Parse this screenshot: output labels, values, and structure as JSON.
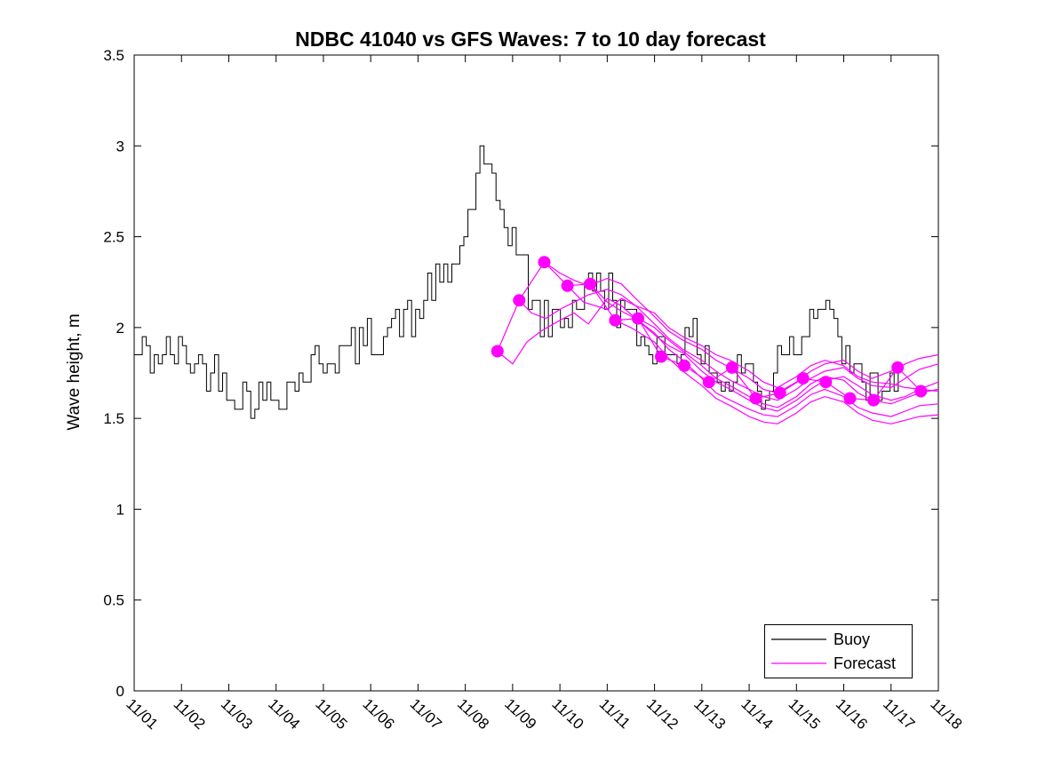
{
  "figure": {
    "title": "NDBC 41040 vs GFS Waves: 7 to 10 day forecast",
    "ylabel": "Wave height, m"
  },
  "colors": {
    "buoy": "#000000",
    "forecast": "#FF00FF",
    "axis": "#000000",
    "background": "#FFFFFF"
  },
  "legend": {
    "position": "lower-right",
    "items": [
      {
        "label": "Buoy",
        "series": "buoy"
      },
      {
        "label": "Forecast",
        "series": "forecast"
      }
    ]
  },
  "chart_data": {
    "type": "line",
    "title": "NDBC 41040 vs GFS Waves: 7 to 10 day forecast",
    "xlabel": "",
    "ylabel": "Wave height, m",
    "x_tick_labels": [
      "11/01",
      "11/02",
      "11/03",
      "11/04",
      "11/05",
      "11/06",
      "11/07",
      "11/08",
      "11/09",
      "11/10",
      "11/11",
      "11/12",
      "11/13",
      "11/14",
      "11/15",
      "11/16",
      "11/17",
      "11/18"
    ],
    "x_unit": "days from 11/01",
    "xlim": [
      0,
      17
    ],
    "ylim": [
      0,
      3.5
    ],
    "y_ticks": [
      0,
      0.5,
      1,
      1.5,
      2,
      2.5,
      3,
      3.5
    ],
    "y_tick_labels": [
      "0",
      "0.5",
      "1",
      "1.5",
      "2",
      "2.5",
      "3",
      "3.5"
    ],
    "grid": false,
    "x_tick_angle_deg": 43,
    "series": [
      {
        "name": "Buoy",
        "style": "stairs",
        "color_key": "buoy",
        "x_start": 0,
        "x_end": 16.2,
        "step_days": 0.085,
        "noise_amplitude": 0.12,
        "quantize": 0.05,
        "seed": 42,
        "trend": [
          [
            0,
            1.85
          ],
          [
            0.4,
            1.83
          ],
          [
            0.8,
            1.86
          ],
          [
            1.2,
            1.82
          ],
          [
            1.6,
            1.78
          ],
          [
            2.0,
            1.68
          ],
          [
            2.4,
            1.62
          ],
          [
            2.8,
            1.61
          ],
          [
            3.2,
            1.66
          ],
          [
            3.6,
            1.76
          ],
          [
            4.0,
            1.82
          ],
          [
            4.4,
            1.86
          ],
          [
            4.8,
            1.9
          ],
          [
            5.2,
            1.98
          ],
          [
            5.6,
            2.04
          ],
          [
            5.9,
            2.02
          ],
          [
            6.1,
            2.15
          ],
          [
            6.3,
            2.26
          ],
          [
            6.5,
            2.2
          ],
          [
            6.7,
            2.32
          ],
          [
            6.9,
            2.45
          ],
          [
            7.1,
            2.65
          ],
          [
            7.3,
            2.95
          ],
          [
            7.45,
            2.82
          ],
          [
            7.6,
            2.72
          ],
          [
            7.8,
            2.62
          ],
          [
            8.0,
            2.5
          ],
          [
            8.2,
            2.32
          ],
          [
            8.5,
            2.08
          ],
          [
            8.8,
            2.02
          ],
          [
            9.1,
            2.07
          ],
          [
            9.4,
            2.18
          ],
          [
            9.7,
            2.24
          ],
          [
            10.0,
            2.2
          ],
          [
            10.3,
            2.1
          ],
          [
            10.6,
            1.96
          ],
          [
            10.9,
            1.9
          ],
          [
            11.2,
            1.9
          ],
          [
            11.5,
            1.89
          ],
          [
            11.8,
            1.92
          ],
          [
            12.0,
            1.9
          ],
          [
            12.3,
            1.74
          ],
          [
            12.5,
            1.63
          ],
          [
            12.7,
            1.76
          ],
          [
            12.9,
            1.84
          ],
          [
            13.1,
            1.68
          ],
          [
            13.3,
            1.6
          ],
          [
            13.5,
            1.76
          ],
          [
            13.7,
            1.95
          ],
          [
            13.9,
            1.88
          ],
          [
            14.1,
            2.0
          ],
          [
            14.35,
            2.1
          ],
          [
            14.55,
            2.15
          ],
          [
            14.7,
            2.02
          ],
          [
            14.9,
            1.93
          ],
          [
            15.1,
            1.76
          ],
          [
            15.35,
            1.7
          ],
          [
            15.6,
            1.71
          ],
          [
            15.8,
            1.66
          ],
          [
            16.0,
            1.62
          ],
          [
            16.2,
            1.76
          ]
        ]
      },
      {
        "name": "Forecast",
        "style": "lines",
        "color_key": "forecast",
        "lines": [
          [
            [
              7.68,
              1.87
            ],
            [
              8.0,
              1.8
            ],
            [
              8.3,
              1.92
            ],
            [
              8.6,
              1.98
            ],
            [
              9.0,
              2.04
            ],
            [
              9.3,
              2.08
            ],
            [
              9.6,
              2.02
            ],
            [
              10.0,
              2.16
            ],
            [
              10.3,
              2.12
            ],
            [
              10.6,
              2.05
            ],
            [
              11.0,
              1.96
            ],
            [
              11.3,
              1.9
            ],
            [
              11.6,
              1.86
            ],
            [
              12.0,
              1.76
            ],
            [
              12.3,
              1.7
            ],
            [
              12.6,
              1.66
            ],
            [
              13.0,
              1.6
            ],
            [
              13.3,
              1.56
            ],
            [
              13.6,
              1.54
            ],
            [
              14.0,
              1.6
            ],
            [
              14.3,
              1.66
            ],
            [
              14.6,
              1.71
            ],
            [
              15.0,
              1.73
            ],
            [
              15.3,
              1.68
            ],
            [
              15.6,
              1.63
            ],
            [
              16.0,
              1.6
            ],
            [
              16.3,
              1.62
            ],
            [
              16.6,
              1.66
            ],
            [
              17.0,
              1.7
            ]
          ],
          [
            [
              8.14,
              2.15
            ],
            [
              8.4,
              2.08
            ],
            [
              8.7,
              2.05
            ],
            [
              9.0,
              2.1
            ],
            [
              9.3,
              2.14
            ],
            [
              9.6,
              2.18
            ],
            [
              10.0,
              2.21
            ],
            [
              10.3,
              2.18
            ],
            [
              10.6,
              2.12
            ],
            [
              11.0,
              2.02
            ],
            [
              11.3,
              1.94
            ],
            [
              11.6,
              1.88
            ],
            [
              12.0,
              1.82
            ],
            [
              12.3,
              1.76
            ],
            [
              12.6,
              1.71
            ],
            [
              13.0,
              1.66
            ],
            [
              13.3,
              1.62
            ],
            [
              13.6,
              1.6
            ],
            [
              14.0,
              1.66
            ],
            [
              14.3,
              1.72
            ],
            [
              14.6,
              1.76
            ],
            [
              15.0,
              1.78
            ],
            [
              15.3,
              1.72
            ],
            [
              15.6,
              1.68
            ],
            [
              16.0,
              1.67
            ],
            [
              16.3,
              1.72
            ],
            [
              16.6,
              1.77
            ],
            [
              17.0,
              1.8
            ]
          ],
          [
            [
              8.67,
              2.36
            ],
            [
              9.0,
              2.3
            ],
            [
              9.3,
              2.26
            ],
            [
              9.6,
              2.23
            ],
            [
              10.0,
              2.27
            ],
            [
              10.3,
              2.24
            ],
            [
              10.6,
              2.16
            ],
            [
              11.0,
              2.06
            ],
            [
              11.3,
              1.98
            ],
            [
              11.6,
              1.93
            ],
            [
              12.0,
              1.88
            ],
            [
              12.3,
              1.82
            ],
            [
              12.6,
              1.78
            ],
            [
              13.0,
              1.72
            ],
            [
              13.3,
              1.66
            ],
            [
              13.6,
              1.64
            ],
            [
              14.0,
              1.7
            ],
            [
              14.3,
              1.76
            ],
            [
              14.6,
              1.8
            ],
            [
              15.0,
              1.82
            ],
            [
              15.3,
              1.76
            ],
            [
              15.6,
              1.72
            ],
            [
              16.0,
              1.76
            ],
            [
              16.3,
              1.8
            ],
            [
              16.6,
              1.83
            ],
            [
              17.0,
              1.85
            ]
          ],
          [
            [
              9.16,
              2.23
            ],
            [
              9.5,
              2.14
            ],
            [
              10.0,
              2.1
            ],
            [
              10.3,
              2.16
            ],
            [
              10.6,
              2.12
            ],
            [
              11.0,
              2.08
            ],
            [
              11.3,
              2.0
            ],
            [
              11.6,
              1.95
            ],
            [
              12.0,
              1.9
            ],
            [
              12.3,
              1.85
            ],
            [
              12.6,
              1.82
            ],
            [
              13.0,
              1.76
            ],
            [
              13.3,
              1.7
            ],
            [
              13.6,
              1.67
            ],
            [
              14.0,
              1.73
            ],
            [
              14.3,
              1.79
            ],
            [
              14.6,
              1.82
            ],
            [
              15.0,
              1.79
            ],
            [
              15.3,
              1.73
            ],
            [
              15.6,
              1.7
            ],
            [
              16.0,
              1.69
            ],
            [
              16.3,
              1.67
            ],
            [
              16.6,
              1.66
            ],
            [
              17.0,
              1.65
            ]
          ],
          [
            [
              9.64,
              2.24
            ],
            [
              10.0,
              2.14
            ],
            [
              10.3,
              2.09
            ],
            [
              10.6,
              2.05
            ],
            [
              11.0,
              1.97
            ],
            [
              11.3,
              1.88
            ],
            [
              11.6,
              1.82
            ],
            [
              12.0,
              1.72
            ],
            [
              12.3,
              1.64
            ],
            [
              12.6,
              1.6
            ],
            [
              13.0,
              1.55
            ],
            [
              13.3,
              1.52
            ],
            [
              13.6,
              1.51
            ],
            [
              14.0,
              1.57
            ],
            [
              14.3,
              1.63
            ],
            [
              14.6,
              1.66
            ],
            [
              15.0,
              1.62
            ],
            [
              15.3,
              1.56
            ],
            [
              15.6,
              1.53
            ],
            [
              16.0,
              1.51
            ],
            [
              16.3,
              1.54
            ],
            [
              16.6,
              1.57
            ],
            [
              17.0,
              1.58
            ]
          ],
          [
            [
              10.17,
              2.04
            ],
            [
              10.5,
              2.0
            ],
            [
              11.0,
              1.92
            ],
            [
              11.3,
              1.83
            ],
            [
              11.6,
              1.76
            ],
            [
              12.0,
              1.68
            ],
            [
              12.3,
              1.61
            ],
            [
              12.6,
              1.57
            ],
            [
              13.0,
              1.51
            ],
            [
              13.3,
              1.48
            ],
            [
              13.6,
              1.47
            ],
            [
              14.0,
              1.53
            ],
            [
              14.3,
              1.59
            ],
            [
              14.6,
              1.62
            ],
            [
              15.0,
              1.59
            ],
            [
              15.3,
              1.53
            ],
            [
              15.6,
              1.49
            ],
            [
              16.0,
              1.47
            ],
            [
              16.3,
              1.49
            ],
            [
              16.6,
              1.51
            ],
            [
              17.0,
              1.52
            ]
          ],
          [
            [
              10.65,
              2.05
            ],
            [
              11.0,
              2.0
            ],
            [
              11.3,
              1.93
            ],
            [
              11.6,
              1.87
            ],
            [
              12.0,
              1.79
            ],
            [
              12.3,
              1.72
            ],
            [
              12.6,
              1.68
            ],
            [
              13.0,
              1.62
            ],
            [
              13.3,
              1.58
            ],
            [
              13.6,
              1.56
            ],
            [
              14.0,
              1.62
            ],
            [
              14.3,
              1.69
            ],
            [
              14.6,
              1.73
            ],
            [
              15.0,
              1.71
            ],
            [
              15.3,
              1.64
            ],
            [
              15.6,
              1.6
            ],
            [
              16.0,
              1.58
            ],
            [
              16.3,
              1.61
            ],
            [
              16.6,
              1.64
            ],
            [
              17.0,
              1.66
            ]
          ],
          [
            [
              7.68,
              1.87
            ],
            [
              8.14,
              2.15
            ],
            [
              8.67,
              2.36
            ],
            [
              9.16,
              2.23
            ],
            [
              9.64,
              2.24
            ],
            [
              10.17,
              2.04
            ],
            [
              10.65,
              2.05
            ],
            [
              11.14,
              1.84
            ],
            [
              11.63,
              1.79
            ],
            [
              12.15,
              1.7
            ],
            [
              12.64,
              1.78
            ],
            [
              13.14,
              1.61
            ],
            [
              13.65,
              1.64
            ],
            [
              14.14,
              1.72
            ],
            [
              14.62,
              1.7
            ],
            [
              15.13,
              1.61
            ],
            [
              15.63,
              1.6
            ],
            [
              16.14,
              1.78
            ],
            [
              16.63,
              1.65
            ]
          ]
        ]
      },
      {
        "name": "Forecast start markers",
        "style": "dots",
        "color_key": "forecast",
        "marker_radius_px": 7,
        "points": [
          [
            7.68,
            1.87
          ],
          [
            8.14,
            2.15
          ],
          [
            8.67,
            2.36
          ],
          [
            9.16,
            2.23
          ],
          [
            9.64,
            2.24
          ],
          [
            10.17,
            2.04
          ],
          [
            10.65,
            2.05
          ],
          [
            11.14,
            1.84
          ],
          [
            11.63,
            1.79
          ],
          [
            12.15,
            1.7
          ],
          [
            12.64,
            1.78
          ],
          [
            13.14,
            1.61
          ],
          [
            13.65,
            1.64
          ],
          [
            14.14,
            1.72
          ],
          [
            14.62,
            1.7
          ],
          [
            15.13,
            1.61
          ],
          [
            15.63,
            1.6
          ],
          [
            16.14,
            1.78
          ],
          [
            16.63,
            1.65
          ]
        ]
      }
    ]
  }
}
